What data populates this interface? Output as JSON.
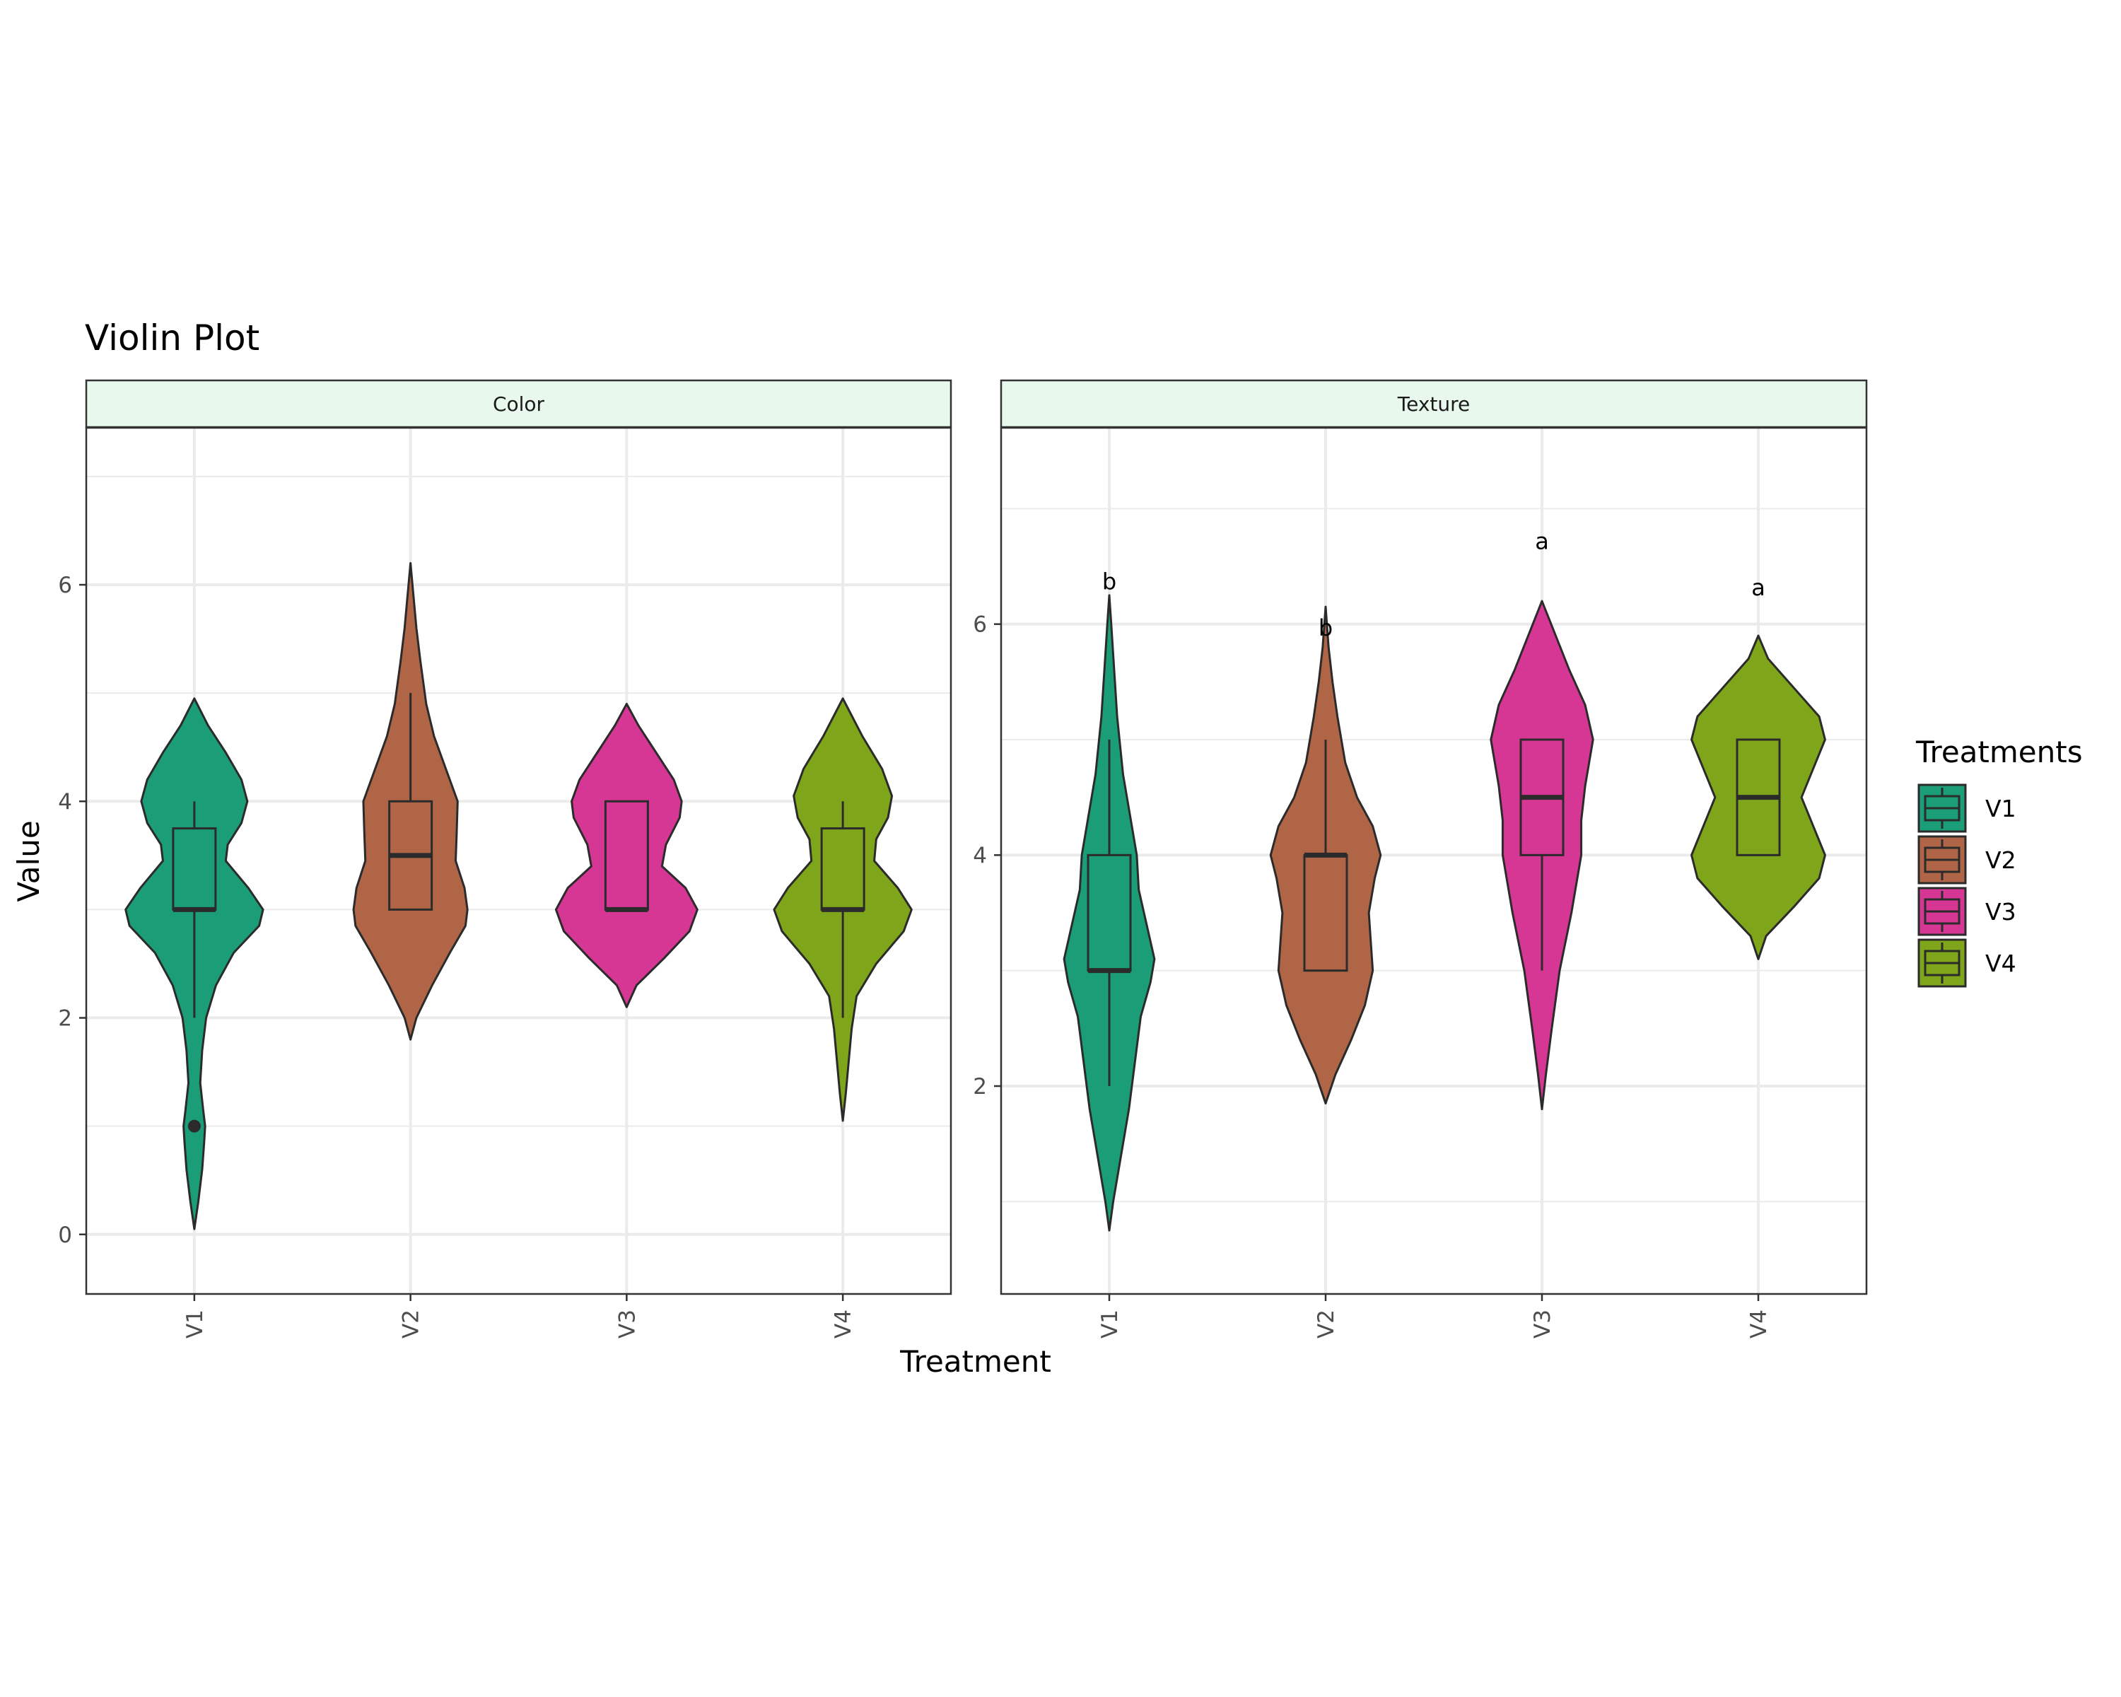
{
  "chart_data": {
    "type": "violin",
    "title": "Violin Plot",
    "xlabel": "Treatment",
    "ylabel": "Value",
    "legend": {
      "title": "Treatments",
      "placement": "right",
      "entries": [
        "V1",
        "V2",
        "V3",
        "V4"
      ]
    },
    "colors": {
      "V1": "#1b9e77",
      "V2": "#b06646",
      "V3": "#d63794",
      "V4": "#7fa61a",
      "strip_fill": "#e8f8ec",
      "grid": "#ebebeb",
      "outline": "#2b2b2b"
    },
    "grid": true,
    "facets": [
      {
        "name": "Color",
        "ylim": [
          -0.55,
          7.45
        ],
        "yticks": [
          0,
          2,
          4,
          6
        ],
        "categories": [
          "V1",
          "V2",
          "V3",
          "V4"
        ],
        "violins": [
          {
            "name": "V1",
            "min": 0.05,
            "max": 4.95,
            "density": [
              [
                0.05,
                0.0
              ],
              [
                0.3,
                0.04
              ],
              [
                0.6,
                0.08
              ],
              [
                0.85,
                0.1
              ],
              [
                1.0,
                0.11
              ],
              [
                1.15,
                0.09
              ],
              [
                1.4,
                0.06
              ],
              [
                1.7,
                0.08
              ],
              [
                2.0,
                0.12
              ],
              [
                2.3,
                0.22
              ],
              [
                2.6,
                0.4
              ],
              [
                2.85,
                0.66
              ],
              [
                3.0,
                0.7
              ],
              [
                3.2,
                0.55
              ],
              [
                3.45,
                0.32
              ],
              [
                3.6,
                0.34
              ],
              [
                3.8,
                0.48
              ],
              [
                4.0,
                0.54
              ],
              [
                4.2,
                0.48
              ],
              [
                4.45,
                0.32
              ],
              [
                4.7,
                0.14
              ],
              [
                4.95,
                0.0
              ]
            ],
            "box": {
              "q1": 3.0,
              "median": 3.0,
              "q3": 3.75,
              "wlo": 2.0,
              "whi": 4.0
            },
            "outliers": [
              1.0
            ]
          },
          {
            "name": "V2",
            "min": 1.8,
            "max": 6.2,
            "density": [
              [
                1.8,
                0.0
              ],
              [
                2.0,
                0.06
              ],
              [
                2.3,
                0.22
              ],
              [
                2.6,
                0.4
              ],
              [
                2.85,
                0.56
              ],
              [
                3.0,
                0.58
              ],
              [
                3.2,
                0.55
              ],
              [
                3.45,
                0.46
              ],
              [
                3.7,
                0.47
              ],
              [
                4.0,
                0.48
              ],
              [
                4.3,
                0.36
              ],
              [
                4.6,
                0.24
              ],
              [
                4.9,
                0.16
              ],
              [
                5.3,
                0.1
              ],
              [
                5.6,
                0.06
              ],
              [
                5.9,
                0.03
              ],
              [
                6.2,
                0.0
              ]
            ],
            "box": {
              "q1": 3.0,
              "median": 3.5,
              "q3": 4.0,
              "wlo": 3.0,
              "whi": 5.0
            },
            "outliers": []
          },
          {
            "name": "V3",
            "min": 2.1,
            "max": 4.9,
            "density": [
              [
                2.1,
                0.0
              ],
              [
                2.3,
                0.1
              ],
              [
                2.55,
                0.38
              ],
              [
                2.8,
                0.64
              ],
              [
                3.0,
                0.72
              ],
              [
                3.2,
                0.6
              ],
              [
                3.4,
                0.36
              ],
              [
                3.6,
                0.4
              ],
              [
                3.85,
                0.54
              ],
              [
                4.0,
                0.56
              ],
              [
                4.2,
                0.48
              ],
              [
                4.45,
                0.3
              ],
              [
                4.7,
                0.12
              ],
              [
                4.9,
                0.0
              ]
            ],
            "box": {
              "q1": 3.0,
              "median": 3.0,
              "q3": 4.0,
              "wlo": 3.0,
              "whi": 4.0
            },
            "outliers": []
          },
          {
            "name": "V4",
            "min": 1.05,
            "max": 4.95,
            "density": [
              [
                1.05,
                0.0
              ],
              [
                1.3,
                0.03
              ],
              [
                1.6,
                0.06
              ],
              [
                1.9,
                0.09
              ],
              [
                2.2,
                0.14
              ],
              [
                2.5,
                0.34
              ],
              [
                2.8,
                0.62
              ],
              [
                3.0,
                0.7
              ],
              [
                3.2,
                0.56
              ],
              [
                3.45,
                0.32
              ],
              [
                3.65,
                0.34
              ],
              [
                3.85,
                0.46
              ],
              [
                4.05,
                0.5
              ],
              [
                4.3,
                0.4
              ],
              [
                4.6,
                0.2
              ],
              [
                4.95,
                0.0
              ]
            ],
            "box": {
              "q1": 3.0,
              "median": 3.0,
              "q3": 3.75,
              "wlo": 2.0,
              "whi": 4.0
            },
            "outliers": []
          }
        ]
      },
      {
        "name": "Texture",
        "ylim": [
          0.2,
          7.7
        ],
        "yticks": [
          2,
          4,
          6
        ],
        "categories": [
          "V1",
          "V2",
          "V3",
          "V4"
        ],
        "significance": [
          {
            "name": "V1",
            "label": "b",
            "y": 6.3
          },
          {
            "name": "V2",
            "label": "b",
            "y": 5.9
          },
          {
            "name": "V3",
            "label": "a",
            "y": 6.65
          },
          {
            "name": "V4",
            "label": "a",
            "y": 6.25
          }
        ],
        "violins": [
          {
            "name": "V1",
            "min": 0.75,
            "max": 6.25,
            "density": [
              [
                0.75,
                0.0
              ],
              [
                1.0,
                0.04
              ],
              [
                1.4,
                0.12
              ],
              [
                1.8,
                0.2
              ],
              [
                2.2,
                0.26
              ],
              [
                2.6,
                0.32
              ],
              [
                2.9,
                0.42
              ],
              [
                3.1,
                0.46
              ],
              [
                3.4,
                0.38
              ],
              [
                3.7,
                0.3
              ],
              [
                4.0,
                0.28
              ],
              [
                4.3,
                0.22
              ],
              [
                4.7,
                0.14
              ],
              [
                5.2,
                0.08
              ],
              [
                5.6,
                0.05
              ],
              [
                6.0,
                0.02
              ],
              [
                6.25,
                0.0
              ]
            ],
            "box": {
              "q1": 3.0,
              "median": 3.0,
              "q3": 4.0,
              "wlo": 2.0,
              "whi": 5.0
            },
            "outliers": []
          },
          {
            "name": "V2",
            "min": 1.85,
            "max": 6.15,
            "density": [
              [
                1.85,
                0.0
              ],
              [
                2.1,
                0.1
              ],
              [
                2.4,
                0.26
              ],
              [
                2.7,
                0.4
              ],
              [
                3.0,
                0.48
              ],
              [
                3.25,
                0.46
              ],
              [
                3.5,
                0.44
              ],
              [
                3.8,
                0.5
              ],
              [
                4.0,
                0.56
              ],
              [
                4.25,
                0.48
              ],
              [
                4.5,
                0.32
              ],
              [
                4.8,
                0.2
              ],
              [
                5.2,
                0.12
              ],
              [
                5.5,
                0.07
              ],
              [
                5.8,
                0.03
              ],
              [
                6.15,
                0.0
              ]
            ],
            "box": {
              "q1": 3.0,
              "median": 4.0,
              "q3": 4.0,
              "wlo": 3.0,
              "whi": 5.0
            },
            "outliers": []
          },
          {
            "name": "V3",
            "min": 1.8,
            "max": 6.2,
            "density": [
              [
                1.8,
                0.0
              ],
              [
                2.1,
                0.04
              ],
              [
                2.5,
                0.1
              ],
              [
                3.0,
                0.18
              ],
              [
                3.5,
                0.3
              ],
              [
                4.0,
                0.4
              ],
              [
                4.3,
                0.4
              ],
              [
                4.6,
                0.44
              ],
              [
                5.0,
                0.52
              ],
              [
                5.3,
                0.44
              ],
              [
                5.6,
                0.28
              ],
              [
                5.9,
                0.14
              ],
              [
                6.2,
                0.0
              ]
            ],
            "box": {
              "q1": 4.0,
              "median": 4.5,
              "q3": 5.0,
              "wlo": 3.0,
              "whi": 5.0
            },
            "outliers": []
          },
          {
            "name": "V4",
            "min": 3.1,
            "max": 5.9,
            "density": [
              [
                3.1,
                0.0
              ],
              [
                3.3,
                0.08
              ],
              [
                3.55,
                0.36
              ],
              [
                3.8,
                0.62
              ],
              [
                4.0,
                0.68
              ],
              [
                4.25,
                0.56
              ],
              [
                4.5,
                0.44
              ],
              [
                4.75,
                0.56
              ],
              [
                5.0,
                0.68
              ],
              [
                5.2,
                0.62
              ],
              [
                5.45,
                0.36
              ],
              [
                5.7,
                0.1
              ],
              [
                5.9,
                0.0
              ]
            ],
            "box": {
              "q1": 4.0,
              "median": 4.5,
              "q3": 5.0,
              "wlo": 4.0,
              "whi": 5.0
            },
            "outliers": []
          }
        ]
      }
    ]
  }
}
